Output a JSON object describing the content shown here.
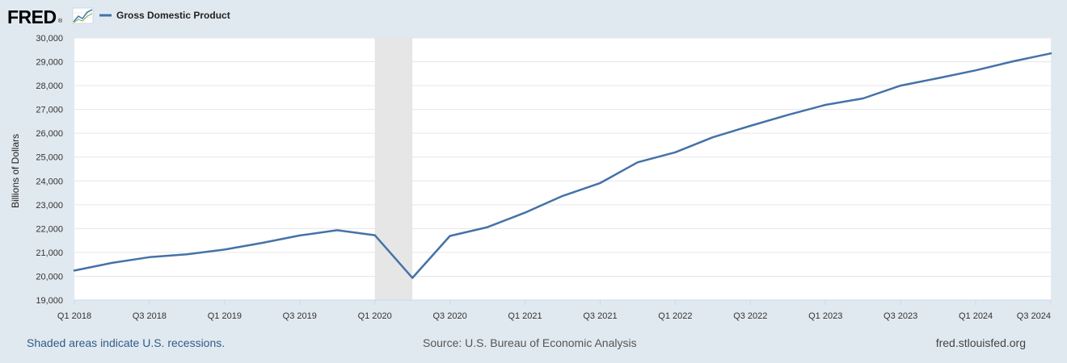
{
  "header": {
    "logo_text": "FRED",
    "logo_registered": "®",
    "logo_icon": "chart-line-icon"
  },
  "footer": {
    "recession_note": "Shaded areas indicate U.S. recessions.",
    "source": "Source: U.S. Bureau of Economic Analysis",
    "site": "fred.stlouisfed.org"
  },
  "colors": {
    "background": "#e1e9f0",
    "plot_background": "#ffffff",
    "series_line": "#4572a7",
    "recession_shade": "#e6e6e6",
    "grid": "#e6e6e6"
  },
  "chart_data": {
    "type": "line",
    "title": "",
    "xlabel": "",
    "ylabel": "Billions of Dollars",
    "ylim": [
      19000,
      30000
    ],
    "y_ticks": [
      19000,
      20000,
      21000,
      22000,
      23000,
      24000,
      25000,
      26000,
      27000,
      28000,
      29000,
      30000
    ],
    "y_tick_labels": [
      "19,000",
      "20,000",
      "21,000",
      "22,000",
      "23,000",
      "24,000",
      "25,000",
      "26,000",
      "27,000",
      "28,000",
      "29,000",
      "30,000"
    ],
    "x_tick_labels": [
      "Q1 2018",
      "Q3 2018",
      "Q1 2019",
      "Q3 2019",
      "Q1 2020",
      "Q3 2020",
      "Q1 2021",
      "Q3 2021",
      "Q1 2022",
      "Q3 2022",
      "Q1 2023",
      "Q3 2023",
      "Q1 2024",
      "Q3 2024"
    ],
    "x_tick_indices": [
      0,
      2,
      4,
      6,
      8,
      10,
      12,
      14,
      16,
      18,
      20,
      22,
      24,
      26
    ],
    "legend_position": "top-left",
    "grid": true,
    "recessions": [
      {
        "start": "2020 Q1",
        "end": "2020 Q2"
      }
    ],
    "x": [
      "2018 Q1",
      "2018 Q2",
      "2018 Q3",
      "2018 Q4",
      "2019 Q1",
      "2019 Q2",
      "2019 Q3",
      "2019 Q4",
      "2020 Q1",
      "2020 Q2",
      "2020 Q3",
      "2020 Q4",
      "2021 Q1",
      "2021 Q2",
      "2021 Q3",
      "2021 Q4",
      "2022 Q1",
      "2022 Q2",
      "2022 Q3",
      "2022 Q4",
      "2023 Q1",
      "2023 Q2",
      "2023 Q3",
      "2023 Q4",
      "2024 Q1",
      "2024 Q2",
      "2024 Q3"
    ],
    "series": [
      {
        "name": "Gross Domestic Product",
        "values": [
          20240,
          20560,
          20800,
          20920,
          21120,
          21400,
          21710,
          21930,
          21720,
          19930,
          21690,
          22060,
          22670,
          23370,
          23910,
          24780,
          25200,
          25830,
          26310,
          26770,
          27190,
          27460,
          28000,
          28310,
          28640,
          29020,
          29350
        ]
      }
    ]
  }
}
